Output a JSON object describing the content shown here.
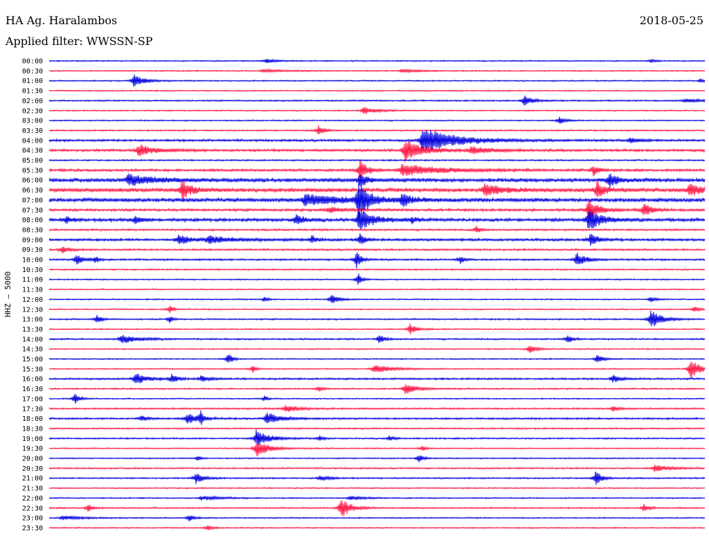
{
  "header": {
    "station": "HA Ag. Haralambos",
    "date": "2018-05-25",
    "filter": "Applied filter: WWSSN-SP"
  },
  "chart_data": {
    "type": "line",
    "ylabel": "HHZ  –  5000",
    "times": [
      "00:00",
      "00:30",
      "01:00",
      "01:30",
      "02:00",
      "02:30",
      "03:00",
      "03:30",
      "04:00",
      "04:30",
      "05:00",
      "05:30",
      "06:00",
      "06:30",
      "07:00",
      "07:30",
      "08:00",
      "08:30",
      "09:00",
      "09:30",
      "10:00",
      "10:30",
      "11:00",
      "11:30",
      "12:00",
      "12:30",
      "13:00",
      "13:30",
      "14:00",
      "14:30",
      "15:00",
      "15:30",
      "16:00",
      "16:30",
      "17:00",
      "17:30",
      "18:00",
      "18:30",
      "19:00",
      "19:30",
      "20:00",
      "20:30",
      "21:00",
      "21:30",
      "22:00",
      "22:30",
      "23:00",
      "23:30"
    ],
    "colors": [
      "#0000dd",
      "#ff1744"
    ],
    "noise": [
      1,
      1,
      1,
      1,
      1.2,
      1,
      1,
      1.2,
      1.8,
      2,
      1.2,
      2,
      3,
      3,
      3,
      2,
      2.5,
      1.5,
      2,
      1.5,
      1.5,
      1.2,
      1,
      1,
      1,
      1,
      1.2,
      1,
      1.3,
      1,
      1,
      1,
      1.5,
      1.2,
      1,
      1.3,
      1.5,
      1.2,
      1.2,
      1,
      1,
      1.2,
      1.2,
      1,
      1,
      1.2,
      1,
      1
    ],
    "events": [
      [
        [
          385,
          3,
          12
        ],
        [
          940,
          2,
          6
        ]
      ],
      [
        [
          380,
          2,
          30
        ],
        [
          580,
          2,
          30
        ]
      ],
      [
        [
          193,
          9,
          14
        ],
        [
          1012,
          3,
          4
        ]
      ],
      [],
      [
        [
          757,
          8,
          10
        ],
        [
          990,
          3,
          20
        ]
      ],
      [
        [
          525,
          5,
          18
        ]
      ],
      [
        [
          808,
          5,
          8
        ]
      ],
      [
        [
          460,
          7,
          8
        ]
      ],
      [
        [
          610,
          18,
          50
        ],
        [
          910,
          4,
          14
        ]
      ],
      [
        [
          585,
          16,
          25
        ],
        [
          200,
          8,
          25
        ],
        [
          680,
          5,
          30
        ]
      ],
      [],
      [
        [
          520,
          14,
          10
        ],
        [
          580,
          8,
          60
        ],
        [
          857,
          7,
          8
        ]
      ],
      [
        [
          185,
          8,
          40
        ],
        [
          520,
          10,
          10
        ],
        [
          880,
          10,
          12
        ]
      ],
      [
        [
          263,
          14,
          12
        ],
        [
          700,
          9,
          25
        ],
        [
          995,
          8,
          25
        ],
        [
          862,
          12,
          10
        ]
      ],
      [
        [
          518,
          28,
          14
        ],
        [
          440,
          8,
          60
        ],
        [
          580,
          9,
          15
        ]
      ],
      [
        [
          930,
          10,
          10
        ],
        [
          475,
          4,
          20
        ],
        [
          850,
          16,
          14
        ]
      ],
      [
        [
          518,
          16,
          20
        ],
        [
          850,
          15,
          20
        ],
        [
          95,
          5,
          6
        ],
        [
          195,
          6,
          8
        ],
        [
          428,
          8,
          10
        ],
        [
          595,
          4,
          6
        ]
      ],
      [
        [
          688,
          5,
          6
        ]
      ],
      [
        [
          258,
          8,
          15
        ],
        [
          300,
          5,
          40
        ],
        [
          450,
          6,
          6
        ],
        [
          520,
          10,
          6
        ],
        [
          853,
          10,
          10
        ]
      ],
      [
        [
          90,
          5,
          8
        ]
      ],
      [
        [
          110,
          7,
          10
        ],
        [
          138,
          5,
          4
        ],
        [
          515,
          12,
          6
        ],
        [
          665,
          6,
          4
        ],
        [
          833,
          10,
          12
        ]
      ],
      [],
      [
        [
          518,
          10,
          4
        ]
      ],
      [],
      [
        [
          478,
          7,
          10
        ],
        [
          382,
          4,
          4
        ],
        [
          940,
          4,
          6
        ]
      ],
      [
        [
          245,
          6,
          4
        ],
        [
          1003,
          4,
          6
        ]
      ],
      [
        [
          140,
          6,
          6
        ],
        [
          245,
          5,
          4
        ],
        [
          940,
          14,
          14
        ]
      ],
      [
        [
          592,
          8,
          8
        ]
      ],
      [
        [
          175,
          6,
          25
        ],
        [
          548,
          7,
          6
        ],
        [
          820,
          6,
          6
        ]
      ],
      [
        [
          765,
          6,
          8
        ]
      ],
      [
        [
          330,
          10,
          4
        ],
        [
          862,
          6,
          8
        ]
      ],
      [
        [
          997,
          14,
          14
        ],
        [
          540,
          6,
          25
        ],
        [
          365,
          5,
          4
        ]
      ],
      [
        [
          195,
          9,
          15
        ],
        [
          248,
          6,
          8
        ],
        [
          290,
          4,
          12
        ],
        [
          885,
          5,
          10
        ]
      ],
      [
        [
          585,
          7,
          18
        ],
        [
          460,
          4,
          6
        ]
      ],
      [
        [
          108,
          8,
          6
        ],
        [
          382,
          4,
          4
        ]
      ],
      [
        [
          412,
          5,
          20
        ],
        [
          885,
          4,
          8
        ]
      ],
      [
        [
          270,
          8,
          14
        ],
        [
          290,
          9,
          4
        ],
        [
          385,
          9,
          18
        ],
        [
          205,
          4,
          6
        ]
      ],
      [],
      [
        [
          370,
          12,
          18
        ],
        [
          462,
          4,
          4
        ],
        [
          562,
          4,
          6
        ]
      ],
      [
        [
          370,
          12,
          18
        ],
        [
          610,
          4,
          4
        ]
      ],
      [
        [
          605,
          6,
          6
        ],
        [
          285,
          3,
          6
        ]
      ],
      [
        [
          945,
          5,
          20
        ]
      ],
      [
        [
          283,
          8,
          10
        ],
        [
          462,
          4,
          12
        ],
        [
          860,
          11,
          8
        ]
      ],
      [],
      [
        [
          290,
          3,
          30
        ],
        [
          505,
          3,
          20
        ]
      ],
      [
        [
          127,
          6,
          5
        ],
        [
          492,
          14,
          14
        ],
        [
          930,
          6,
          6
        ]
      ],
      [
        [
          90,
          3,
          30
        ],
        [
          273,
          5,
          6
        ]
      ],
      [
        [
          300,
          4,
          6
        ]
      ]
    ]
  }
}
